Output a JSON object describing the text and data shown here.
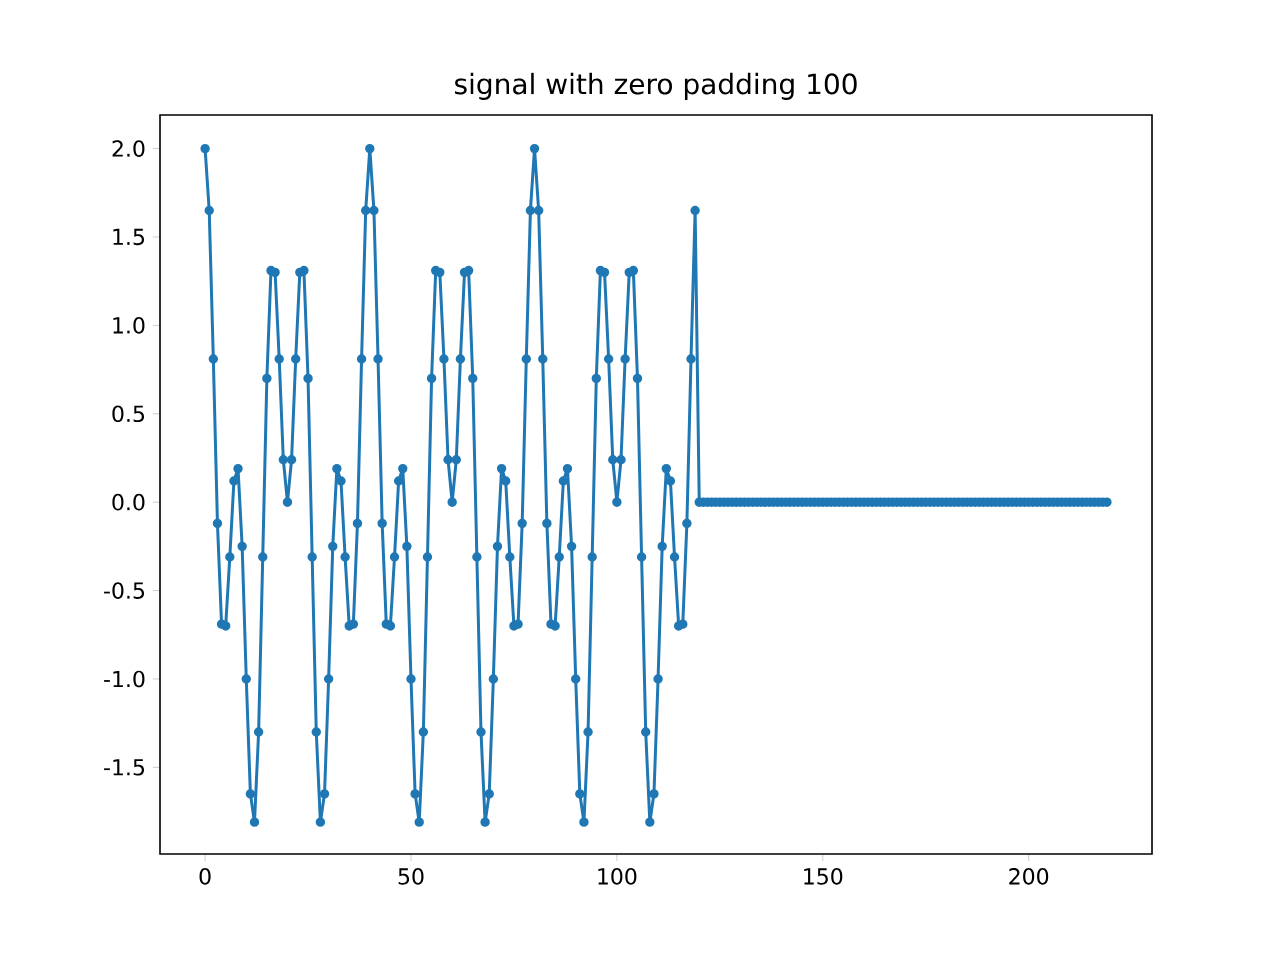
{
  "chart_data": {
    "type": "line",
    "title": "signal with zero padding 100",
    "x": [
      0,
      1,
      2,
      3,
      4,
      5,
      6,
      7,
      8,
      9,
      10,
      11,
      12,
      13,
      14,
      15,
      16,
      17,
      18,
      19,
      20,
      21,
      22,
      23,
      24,
      25,
      26,
      27,
      28,
      29,
      30,
      31,
      32,
      33,
      34,
      35,
      36,
      37,
      38,
      39,
      40,
      41,
      42,
      43,
      44,
      45,
      46,
      47,
      48,
      49,
      50,
      51,
      52,
      53,
      54,
      55,
      56,
      57,
      58,
      59,
      60,
      61,
      62,
      63,
      64,
      65,
      66,
      67,
      68,
      69,
      70,
      71,
      72,
      73,
      74,
      75,
      76,
      77,
      78,
      79,
      80,
      81,
      82,
      83,
      84,
      85,
      86,
      87,
      88,
      89,
      90,
      91,
      92,
      93,
      94,
      95,
      96,
      97,
      98,
      99,
      100,
      101,
      102,
      103,
      104,
      105,
      106,
      107,
      108,
      109,
      110,
      111,
      112,
      113,
      114,
      115,
      116,
      117,
      118,
      119,
      120,
      121,
      122,
      123,
      124,
      125,
      126,
      127,
      128,
      129,
      130,
      131,
      132,
      133,
      134,
      135,
      136,
      137,
      138,
      139,
      140,
      141,
      142,
      143,
      144,
      145,
      146,
      147,
      148,
      149,
      150,
      151,
      152,
      153,
      154,
      155,
      156,
      157,
      158,
      159,
      160,
      161,
      162,
      163,
      164,
      165,
      166,
      167,
      168,
      169,
      170,
      171,
      172,
      173,
      174,
      175,
      176,
      177,
      178,
      179,
      180,
      181,
      182,
      183,
      184,
      185,
      186,
      187,
      188,
      189,
      190,
      191,
      192,
      193,
      194,
      195,
      196,
      197,
      198,
      199,
      200,
      201,
      202,
      203,
      204,
      205,
      206,
      207,
      208,
      209,
      210,
      211,
      212,
      213,
      214,
      215,
      216,
      217,
      218,
      219
    ],
    "values": [
      2.0,
      1.65,
      0.81,
      -0.12,
      -0.69,
      -0.7,
      -0.31,
      0.12,
      0.19,
      -0.25,
      -1.0,
      -1.65,
      -1.81,
      -1.3,
      -0.31,
      0.7,
      1.31,
      1.3,
      0.81,
      0.24,
      0.0,
      0.24,
      0.81,
      1.3,
      1.31,
      0.7,
      -0.31,
      -1.3,
      -1.81,
      -1.65,
      -1.0,
      -0.25,
      0.19,
      0.12,
      -0.31,
      -0.7,
      -0.69,
      -0.12,
      0.81,
      1.65,
      2.0,
      1.65,
      0.81,
      -0.12,
      -0.69,
      -0.7,
      -0.31,
      0.12,
      0.19,
      -0.25,
      -1.0,
      -1.65,
      -1.81,
      -1.3,
      -0.31,
      0.7,
      1.31,
      1.3,
      0.81,
      0.24,
      0.0,
      0.24,
      0.81,
      1.3,
      1.31,
      0.7,
      -0.31,
      -1.3,
      -1.81,
      -1.65,
      -1.0,
      -0.25,
      0.19,
      0.12,
      -0.31,
      -0.7,
      -0.69,
      -0.12,
      0.81,
      1.65,
      2.0,
      1.65,
      0.81,
      -0.12,
      -0.69,
      -0.7,
      -0.31,
      0.12,
      0.19,
      -0.25,
      -1.0,
      -1.65,
      -1.81,
      -1.3,
      -0.31,
      0.7,
      1.31,
      1.3,
      0.81,
      0.24,
      0.0,
      0.24,
      0.81,
      1.3,
      1.31,
      0.7,
      -0.31,
      -1.3,
      -1.81,
      -1.65,
      -1.0,
      -0.25,
      0.19,
      0.12,
      -0.31,
      -0.7,
      -0.69,
      -0.12,
      0.81,
      1.65,
      0,
      0,
      0,
      0,
      0,
      0,
      0,
      0,
      0,
      0,
      0,
      0,
      0,
      0,
      0,
      0,
      0,
      0,
      0,
      0,
      0,
      0,
      0,
      0,
      0,
      0,
      0,
      0,
      0,
      0,
      0,
      0,
      0,
      0,
      0,
      0,
      0,
      0,
      0,
      0,
      0,
      0,
      0,
      0,
      0,
      0,
      0,
      0,
      0,
      0,
      0,
      0,
      0,
      0,
      0,
      0,
      0,
      0,
      0,
      0,
      0,
      0,
      0,
      0,
      0,
      0,
      0,
      0,
      0,
      0,
      0,
      0,
      0,
      0,
      0,
      0,
      0,
      0,
      0,
      0,
      0,
      0,
      0,
      0,
      0,
      0,
      0,
      0,
      0,
      0,
      0,
      0,
      0,
      0,
      0,
      0,
      0,
      0,
      0,
      0
    ],
    "color": "#1f77b4",
    "marker": "circle",
    "line_style": "solid",
    "xlim": [
      -10.95,
      229.95
    ],
    "ylim": [
      -1.99,
      2.19
    ],
    "xticks": [
      0,
      50,
      100,
      150,
      200
    ],
    "yticks": [
      -1.5,
      {
        "value": -1.0,
        "label": "-1.0"
      },
      -0.5,
      {
        "value": 0.0,
        "label": "0.0"
      },
      0.5,
      {
        "value": 1.0,
        "label": "1.0"
      },
      1.5,
      {
        "value": 2.0,
        "label": "2.0"
      }
    ]
  }
}
